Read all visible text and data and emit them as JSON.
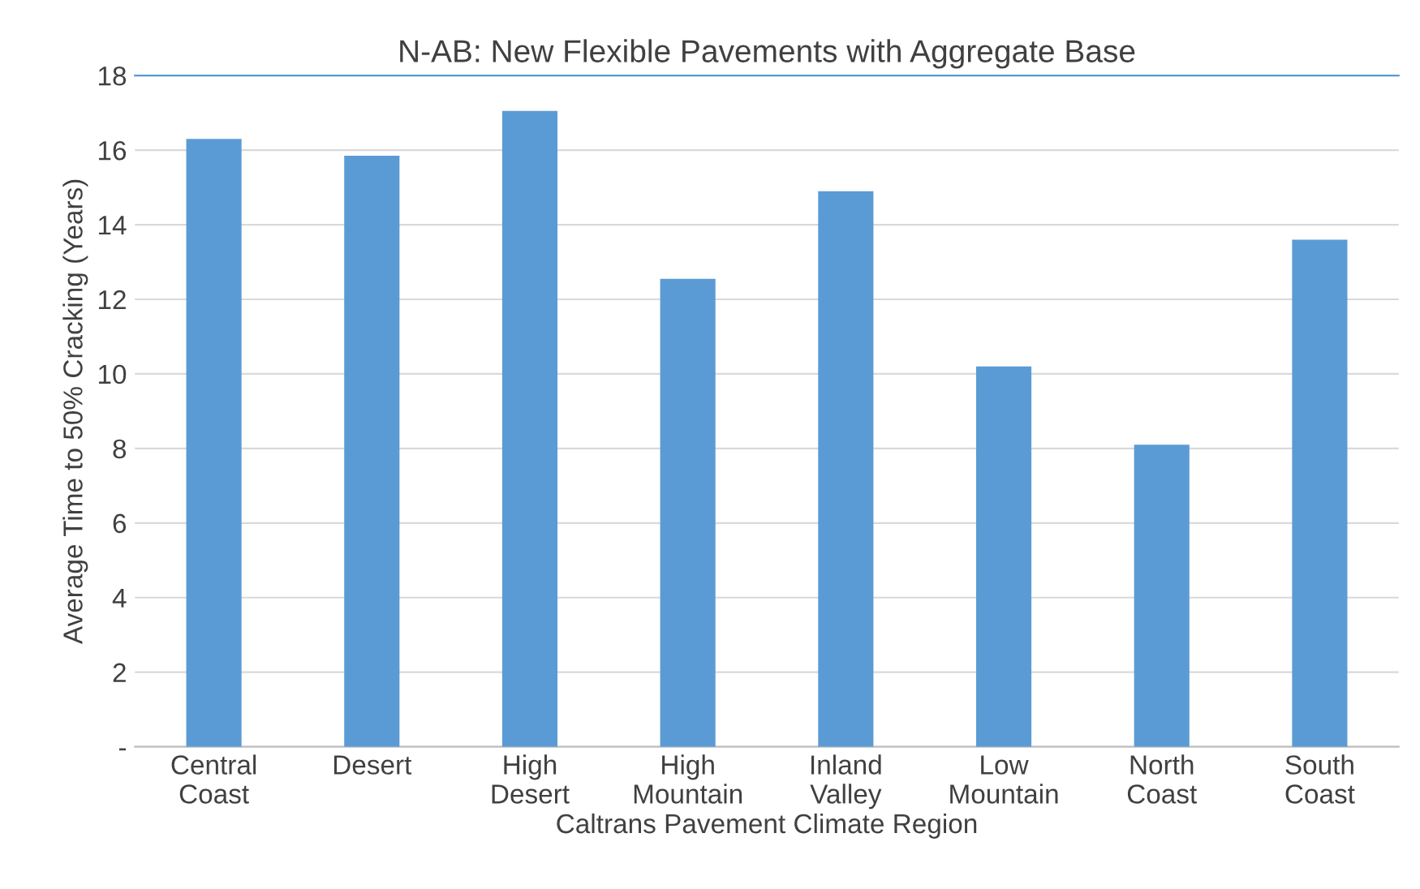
{
  "chart_data": {
    "type": "bar",
    "title": "N-AB: New Flexible Pavements with Aggregate Base",
    "xlabel": "Caltrans Pavement Climate Region",
    "ylabel": "Average Time to 50% Cracking (Years)",
    "categories": [
      "Central\nCoast",
      "Desert",
      "High\nDesert",
      "High\nMountain",
      "Inland\nValley",
      "Low\nMountain",
      "North\nCoast",
      "South\nCoast"
    ],
    "values": [
      16.3,
      15.85,
      17.05,
      12.55,
      14.9,
      10.2,
      8.1,
      13.6
    ],
    "color": "#5b9bd5",
    "ylim": [
      0,
      18
    ],
    "yticks": [
      {
        "value": 0,
        "label": "-"
      },
      2,
      4,
      6,
      8,
      10,
      12,
      14,
      16,
      18
    ],
    "grid": "y",
    "legend": false
  }
}
